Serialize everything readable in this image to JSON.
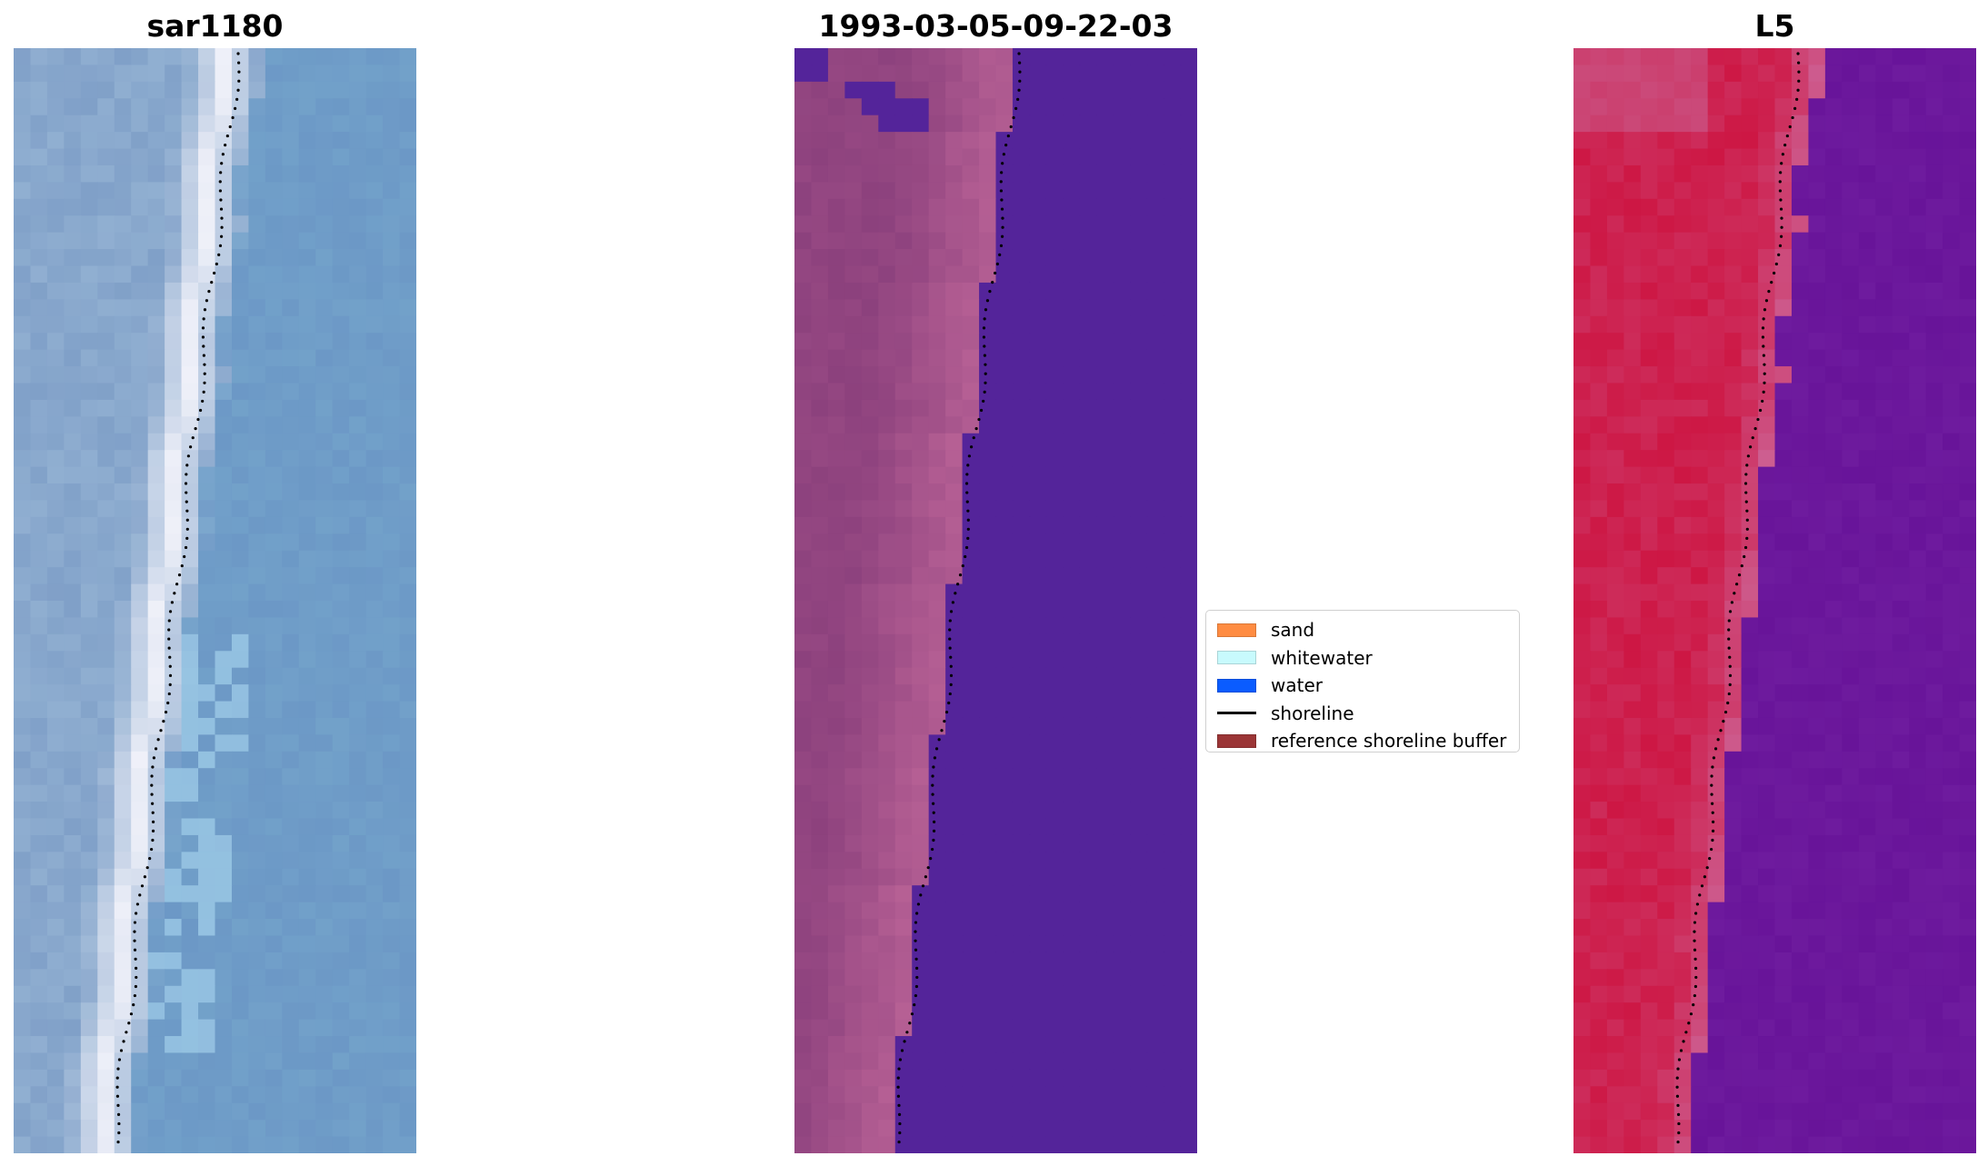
{
  "panels": [
    {
      "title": "sar1180",
      "palette": "sar",
      "image": "satellite-rgb-icon"
    },
    {
      "title": "1993-03-05-09-22-03",
      "palette": "classified",
      "image": "classification-icon"
    },
    {
      "title": "L5",
      "palette": "false-color",
      "image": "false-color-icon"
    }
  ],
  "legend": {
    "items": [
      {
        "label": "sand",
        "color": "#ff8c42",
        "kind": "patch"
      },
      {
        "label": "whitewater",
        "color": "#c8fafd",
        "kind": "patch"
      },
      {
        "label": "water",
        "color": "#0a5cff",
        "kind": "patch"
      },
      {
        "label": "shoreline",
        "color": "#000000",
        "kind": "line"
      },
      {
        "label": "reference shoreline buffer",
        "color": "#9b3536",
        "kind": "patch"
      }
    ]
  },
  "colors": {
    "water_class": "#54249a",
    "sand_class": "#b25f95",
    "sar_water": "#6b98c8",
    "sar_surf": "#f4f4fb",
    "l5_land": "#cd1744",
    "l5_water": "#6e1b9e"
  }
}
